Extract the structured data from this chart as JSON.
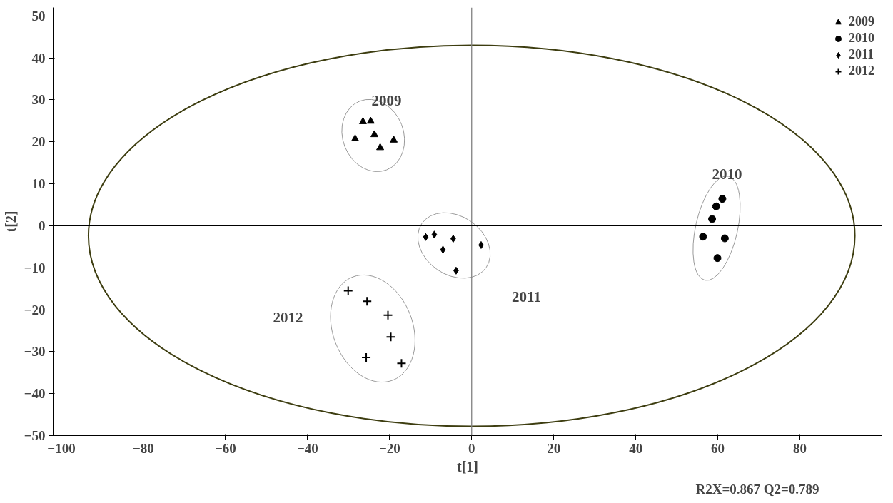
{
  "chart_data": {
    "type": "scatter",
    "xlabel": "t[1]",
    "ylabel": "t[2]",
    "xlim": [
      -102,
      100
    ],
    "ylim": [
      -50,
      52
    ],
    "xticks": [
      -100,
      -80,
      -60,
      -40,
      -20,
      0,
      20,
      40,
      60,
      80
    ],
    "yticks": [
      -50,
      -40,
      -30,
      -20,
      -10,
      0,
      10,
      20,
      30,
      40,
      50
    ],
    "grid": false,
    "legend": "top right",
    "series": [
      {
        "name": "2009",
        "color": "#000000",
        "marker": "triangle",
        "x": [
          -26.5,
          -24.6,
          -28.4,
          -23.7,
          -22.3,
          -19.0
        ],
        "values": [
          24.8,
          24.9,
          20.7,
          21.7,
          18.6,
          20.4
        ]
      },
      {
        "name": "2010",
        "color": "#000000",
        "marker": "circle",
        "x": [
          61.1,
          59.6,
          58.6,
          56.4,
          61.7,
          59.9
        ],
        "values": [
          6.4,
          4.6,
          1.6,
          -2.6,
          -3.0,
          -7.7
        ]
      },
      {
        "name": "2011",
        "color": "#000000",
        "marker": "diamond",
        "x": [
          -11.2,
          -9.1,
          -4.5,
          -7.0,
          -3.8,
          2.3
        ],
        "values": [
          -2.7,
          -2.1,
          -3.1,
          -5.7,
          -10.7,
          -4.6
        ]
      },
      {
        "name": "2012",
        "color": "#000000",
        "marker": "cross",
        "x": [
          -30.1,
          -25.5,
          -20.4,
          -19.7,
          -25.7,
          -17.1
        ],
        "values": [
          -15.5,
          -18.0,
          -21.3,
          -26.5,
          -31.4,
          -32.8
        ]
      }
    ],
    "ref_lines": [
      {
        "axis": "x",
        "value": 0,
        "color": "#808080"
      },
      {
        "axis": "y",
        "value": 0,
        "color": "#000000"
      }
    ],
    "annotations": [
      "2009",
      "2010",
      "2011",
      "2012",
      "R2X=0.867    Q2=0.789"
    ]
  }
}
